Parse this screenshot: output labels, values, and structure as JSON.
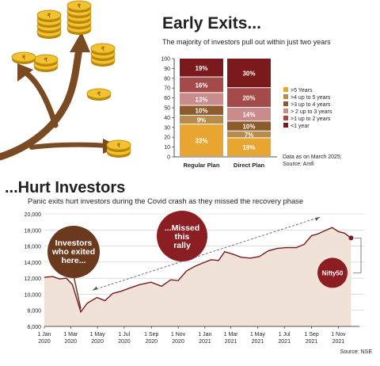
{
  "top_section": {
    "title": "Early Exits...",
    "subtitle": "The majority of investors pull out within just two years",
    "note_line1": "Data as on March 2025;",
    "note_line2": "Source: Amfi"
  },
  "bottom_section": {
    "title": "...Hurt Investors",
    "subtitle": "Panic exits hurt investors during the Covid crash as they missed the recovery phase",
    "callout_exited": [
      "Investors",
      "who exited",
      "here..."
    ],
    "callout_missed": [
      "...Missed",
      "this",
      "rally"
    ],
    "index_badge": "Nifty50",
    "source": "Source: NSE"
  },
  "colors": {
    "gt5": "#e8a630",
    "4to5": "#b78a4d",
    "3to4": "#8c5a2b",
    "2to3": "#c98b8b",
    "1to2": "#a44a4a",
    "lt1": "#7a1a1c",
    "area_fill": "#f0e2d6",
    "line": "#7a1a1c",
    "callout": "#6b3a1e",
    "callout_missed": "#8b1e22"
  },
  "chart_data": [
    {
      "type": "bar",
      "stacked": true,
      "categories": [
        "Regular Plan",
        "Direct Plan"
      ],
      "series": [
        {
          "name": ">5 Years",
          "values": [
            33,
            19
          ]
        },
        {
          "name": ">4 up to 5 years",
          "values": [
            9,
            7
          ]
        },
        {
          "name": ">3 up to 4 years",
          "values": [
            10,
            10
          ]
        },
        {
          "name": "> 2 up to 3 years",
          "values": [
            13,
            14
          ]
        },
        {
          "name": ">1 up to 2 years",
          "values": [
            16,
            20
          ]
        },
        {
          "name": "<1 year",
          "values": [
            19,
            30
          ]
        }
      ],
      "data_labels": [
        [
          "33%",
          "9%",
          "10%",
          "13%",
          "16%",
          "19%"
        ],
        [
          "19%",
          "7%",
          "10%",
          "14%",
          "20%",
          "30%"
        ]
      ],
      "ylim": [
        0,
        100
      ],
      "yticks": [
        0,
        10,
        20,
        30,
        40,
        50,
        60,
        70,
        80,
        90,
        100
      ],
      "legend": "right",
      "grid": false
    },
    {
      "type": "area",
      "x_ticks": [
        "1 Jan 2020",
        "1 Mar 2020",
        "1 May 2020",
        "1 Jul 2020",
        "1 Sep 2020",
        "1 Nov 2020",
        "1 Jan 2021",
        "1 Mar 2021",
        "1 May 2021",
        "1 Jul 2021",
        "1 Sep 2021",
        "1 Nov 2021"
      ],
      "x": [
        "2020-01-01",
        "2020-01-20",
        "2020-02-05",
        "2020-02-20",
        "2020-03-05",
        "2020-03-24",
        "2020-04-08",
        "2020-04-30",
        "2020-05-18",
        "2020-06-05",
        "2020-06-25",
        "2020-07-15",
        "2020-08-05",
        "2020-08-31",
        "2020-09-24",
        "2020-10-15",
        "2020-11-01",
        "2020-11-20",
        "2020-12-10",
        "2021-01-01",
        "2021-01-15",
        "2021-02-01",
        "2021-02-15",
        "2021-03-05",
        "2021-03-25",
        "2021-04-15",
        "2021-05-05",
        "2021-05-25",
        "2021-06-15",
        "2021-07-05",
        "2021-07-28",
        "2021-08-15",
        "2021-09-01",
        "2021-09-15",
        "2021-10-01",
        "2021-10-18",
        "2021-11-01",
        "2021-11-15",
        "2021-11-30"
      ],
      "y": [
        12100,
        12200,
        11900,
        12000,
        11200,
        7800,
        8900,
        9600,
        9200,
        10100,
        10400,
        10800,
        11200,
        11500,
        11000,
        11800,
        11700,
        12900,
        13500,
        14000,
        14300,
        14200,
        15300,
        15000,
        14600,
        14500,
        14700,
        15400,
        15700,
        15800,
        15800,
        16200,
        17300,
        17500,
        17900,
        18300,
        17800,
        17600,
        17000
      ],
      "ylim": [
        6000,
        20000
      ],
      "yticks": [
        "6,000",
        "8,000",
        "10,000",
        "12,000",
        "14,000",
        "16,000",
        "18,000",
        "20,000"
      ],
      "grid": true,
      "series_name": "Nifty50"
    }
  ]
}
